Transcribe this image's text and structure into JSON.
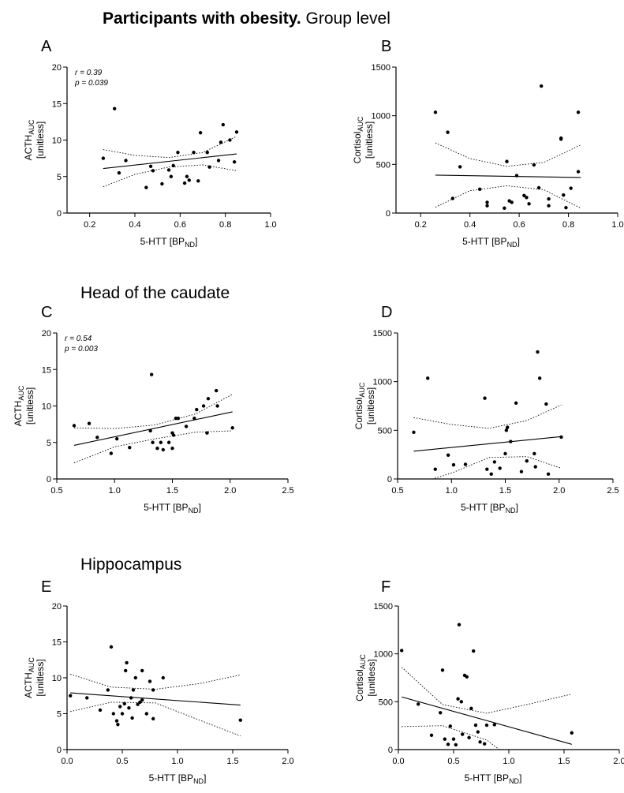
{
  "sections": [
    {
      "bold": "Participants with obesity.",
      "normal": "Group level"
    },
    {
      "normal": "Head of the caudate"
    },
    {
      "normal": "Hippocampus"
    }
  ],
  "chart_data": [
    {
      "type": "scatter",
      "panel": "A",
      "color": "#000000",
      "ylabel": {
        "main": "ACTH",
        "sub": "AUC",
        "unit": "[unitless]"
      },
      "xlabel": {
        "main": "5-HTT [BP",
        "sub": "ND",
        "end": "]"
      },
      "xlim": [
        0.1,
        1.0
      ],
      "ylim": [
        0,
        20
      ],
      "xticks": [
        0.2,
        0.4,
        0.6,
        0.8,
        {
          "value": 1,
          "label": "1.0"
        }
      ],
      "yticks": [
        0,
        5,
        10,
        15,
        20
      ],
      "annotations": [
        "r = 0.39",
        "p = 0.039"
      ],
      "x": [
        0.26,
        0.31,
        0.33,
        0.36,
        0.47,
        0.48,
        0.45,
        0.52,
        0.55,
        0.56,
        0.57,
        0.59,
        0.62,
        0.63,
        0.64,
        0.66,
        0.68,
        0.69,
        0.72,
        0.73,
        0.77,
        0.78,
        0.79,
        0.82,
        0.84,
        0.85
      ],
      "y": [
        7.5,
        14.3,
        5.5,
        7.2,
        6.4,
        5.8,
        3.5,
        4.0,
        5.9,
        5.0,
        6.5,
        8.3,
        4.1,
        5.0,
        4.5,
        8.3,
        4.4,
        11.0,
        8.3,
        6.3,
        7.2,
        9.7,
        12.1,
        10.0,
        7.0,
        11.1
      ],
      "fit": {
        "x": [
          0.26,
          0.85
        ],
        "y": [
          6.1,
          8.1
        ]
      },
      "ci": {
        "x": [
          0.26,
          0.4,
          0.55,
          0.7,
          0.85
        ],
        "upper": [
          8.7,
          7.9,
          7.6,
          8.3,
          10.5
        ],
        "lower": [
          3.6,
          5.3,
          6.3,
          6.6,
          5.8
        ]
      }
    },
    {
      "type": "scatter",
      "panel": "B",
      "color": "#000000",
      "ylabel": {
        "main": "Cortisol",
        "sub": "AUC",
        "unit": "[unitless]"
      },
      "xlabel": {
        "main": "5-HTT [BP",
        "sub": "ND",
        "end": "]"
      },
      "xlim": [
        0.1,
        1.0
      ],
      "ylim": [
        0,
        1500
      ],
      "xticks": [
        0.2,
        0.4,
        0.6,
        0.8,
        {
          "value": 1,
          "label": "1.0"
        }
      ],
      "yticks": [
        0,
        500,
        1000,
        1500
      ],
      "x": [
        0.26,
        0.31,
        0.33,
        0.36,
        0.44,
        0.47,
        0.47,
        0.54,
        0.55,
        0.56,
        0.57,
        0.59,
        0.62,
        0.63,
        0.64,
        0.66,
        0.68,
        0.69,
        0.72,
        0.72,
        0.77,
        0.77,
        0.78,
        0.79,
        0.81,
        0.84,
        0.84
      ],
      "y": [
        1035,
        830,
        150,
        475,
        245,
        110,
        75,
        50,
        530,
        125,
        110,
        385,
        180,
        160,
        95,
        495,
        260,
        1305,
        145,
        75,
        770,
        760,
        185,
        55,
        255,
        1035,
        425
      ],
      "fit": {
        "x": [
          0.26,
          0.85
        ],
        "y": [
          390,
          365
        ]
      },
      "ci": {
        "x": [
          0.26,
          0.4,
          0.55,
          0.7,
          0.85
        ],
        "upper": [
          720,
          560,
          480,
          520,
          700
        ],
        "lower": [
          60,
          230,
          280,
          240,
          50
        ]
      }
    },
    {
      "type": "scatter",
      "panel": "C",
      "color": "#000000",
      "ylabel": {
        "main": "ACTH",
        "sub": "AUC",
        "unit": "[unitless]"
      },
      "xlabel": {
        "main": "5-HTT [BP",
        "sub": "ND",
        "end": "]"
      },
      "xlim": [
        0.5,
        2.5
      ],
      "ylim": [
        0,
        20
      ],
      "xticks": [
        0.5,
        {
          "value": 1,
          "label": "1.0"
        },
        1.5,
        {
          "value": 2,
          "label": "2.0"
        },
        2.5
      ],
      "yticks": [
        0,
        5,
        10,
        15,
        20
      ],
      "annotations": [
        "r = 0.54",
        "p = 0.003"
      ],
      "x": [
        0.65,
        0.78,
        0.85,
        0.97,
        1.02,
        1.13,
        1.31,
        1.32,
        1.33,
        1.37,
        1.4,
        1.42,
        1.47,
        1.5,
        1.5,
        1.51,
        1.53,
        1.55,
        1.62,
        1.69,
        1.71,
        1.77,
        1.8,
        1.81,
        1.88,
        1.89,
        2.02
      ],
      "y": [
        7.3,
        7.6,
        5.7,
        3.5,
        5.5,
        4.3,
        6.6,
        14.3,
        5.0,
        4.2,
        5.0,
        4.0,
        5.0,
        4.2,
        6.3,
        6.0,
        8.3,
        8.3,
        7.2,
        8.3,
        9.5,
        10.0,
        6.3,
        11.0,
        12.1,
        10.0,
        7.0
      ],
      "fit": {
        "x": [
          0.65,
          2.02
        ],
        "y": [
          4.6,
          9.2
        ]
      },
      "ci": {
        "x": [
          0.65,
          1,
          1.35,
          1.7,
          2.02
        ],
        "upper": [
          7.0,
          6.9,
          7.4,
          8.9,
          11.6
        ],
        "lower": [
          2.2,
          4.4,
          5.5,
          6.4,
          6.6
        ]
      }
    },
    {
      "type": "scatter",
      "panel": "D",
      "color": "#000000",
      "ylabel": {
        "main": "Cortisol",
        "sub": "AUC",
        "unit": "[unitless]"
      },
      "xlabel": {
        "main": "5-HTT [BP",
        "sub": "ND",
        "end": "]"
      },
      "xlim": [
        0.5,
        2.5
      ],
      "ylim": [
        0,
        1500
      ],
      "xticks": [
        0.5,
        {
          "value": 1,
          "label": "1.0"
        },
        1.5,
        {
          "value": 2,
          "label": "2.0"
        },
        2.5
      ],
      "yticks": [
        0,
        500,
        1000,
        1500
      ],
      "x": [
        0.65,
        0.78,
        0.85,
        0.97,
        1.02,
        1.13,
        1.31,
        1.33,
        1.37,
        1.4,
        1.45,
        1.5,
        1.51,
        1.52,
        1.55,
        1.6,
        1.65,
        1.7,
        1.77,
        1.8,
        1.82,
        1.78,
        1.88,
        1.9,
        2.02
      ],
      "y": [
        480,
        1035,
        100,
        245,
        145,
        150,
        830,
        100,
        50,
        175,
        110,
        260,
        500,
        530,
        385,
        780,
        75,
        185,
        260,
        1305,
        1035,
        125,
        770,
        50,
        430
      ],
      "fit": {
        "x": [
          0.65,
          2.02
        ],
        "y": [
          285,
          435
        ]
      },
      "ci": {
        "x": [
          0.65,
          1,
          1.35,
          1.7,
          2.02
        ],
        "upper": [
          630,
          560,
          520,
          600,
          760
        ],
        "lower": [
          -60,
          60,
          220,
          230,
          110
        ]
      }
    },
    {
      "type": "scatter",
      "panel": "E",
      "color": "#000000",
      "ylabel": {
        "main": "ACTH",
        "sub": "AUC",
        "unit": "[unitless]"
      },
      "xlabel": {
        "main": "5-HTT [BP",
        "sub": "ND",
        "end": "]"
      },
      "xlim": [
        0,
        2
      ],
      "ylim": [
        0,
        20
      ],
      "xticks": [
        {
          "value": 0,
          "label": "0.0"
        },
        0.5,
        {
          "value": 1,
          "label": "1.0"
        },
        1.5,
        {
          "value": 2,
          "label": "2.0"
        }
      ],
      "yticks": [
        0,
        5,
        10,
        15,
        20
      ],
      "x": [
        0.03,
        0.18,
        0.3,
        0.37,
        0.4,
        0.42,
        0.45,
        0.46,
        0.48,
        0.5,
        0.52,
        0.53,
        0.54,
        0.56,
        0.58,
        0.59,
        0.6,
        0.62,
        0.64,
        0.66,
        0.68,
        0.68,
        0.72,
        0.75,
        0.78,
        0.78,
        0.87,
        1.57
      ],
      "y": [
        7.5,
        7.2,
        5.5,
        8.3,
        14.3,
        5.0,
        4.0,
        3.5,
        6.0,
        5.0,
        6.4,
        11.0,
        12.1,
        5.8,
        7.2,
        4.4,
        8.3,
        10.0,
        6.3,
        6.6,
        6.9,
        11.0,
        5.0,
        9.5,
        8.3,
        4.3,
        10.0,
        4.1
      ],
      "fit": {
        "x": [
          0.03,
          1.57
        ],
        "y": [
          7.9,
          6.2
        ]
      },
      "ci": {
        "x": [
          0.03,
          0.4,
          0.8,
          1.2,
          1.57
        ],
        "upper": [
          10.5,
          8.7,
          8.4,
          9.2,
          10.4
        ],
        "lower": [
          5.3,
          6.6,
          6.5,
          4.1,
          1.9
        ]
      }
    },
    {
      "type": "scatter",
      "panel": "F",
      "color": "#000000",
      "ylabel": {
        "main": "Cortisol",
        "sub": "AUC",
        "unit": "[unitless]"
      },
      "xlabel": {
        "main": "5-HTT [BP",
        "sub": "ND",
        "end": "]"
      },
      "xlim": [
        0,
        2
      ],
      "ylim": [
        0,
        1500
      ],
      "xticks": [
        {
          "value": 0,
          "label": "0.0"
        },
        0.5,
        {
          "value": 1,
          "label": "1.0"
        },
        1.5,
        {
          "value": 2,
          "label": "2.0"
        }
      ],
      "yticks": [
        0,
        500,
        1000,
        1500
      ],
      "x": [
        0.03,
        0.18,
        0.3,
        0.38,
        0.4,
        0.42,
        0.45,
        0.47,
        0.5,
        0.52,
        0.54,
        0.55,
        0.57,
        0.58,
        0.6,
        0.62,
        0.64,
        0.66,
        0.68,
        0.7,
        0.72,
        0.74,
        0.78,
        0.8,
        0.87,
        1.57
      ],
      "y": [
        1035,
        475,
        150,
        385,
        830,
        110,
        55,
        245,
        110,
        50,
        530,
        1305,
        500,
        160,
        775,
        760,
        125,
        430,
        1030,
        255,
        185,
        80,
        60,
        255,
        260,
        175
      ],
      "fit": {
        "x": [
          0.03,
          1.57
        ],
        "y": [
          550,
          55
        ]
      },
      "ci": {
        "x": [
          0.03,
          0.4,
          0.8,
          1.2,
          1.57
        ],
        "upper": [
          860,
          470,
          380,
          480,
          580
        ],
        "lower": [
          240,
          250,
          100,
          -250,
          -470
        ]
      }
    }
  ]
}
